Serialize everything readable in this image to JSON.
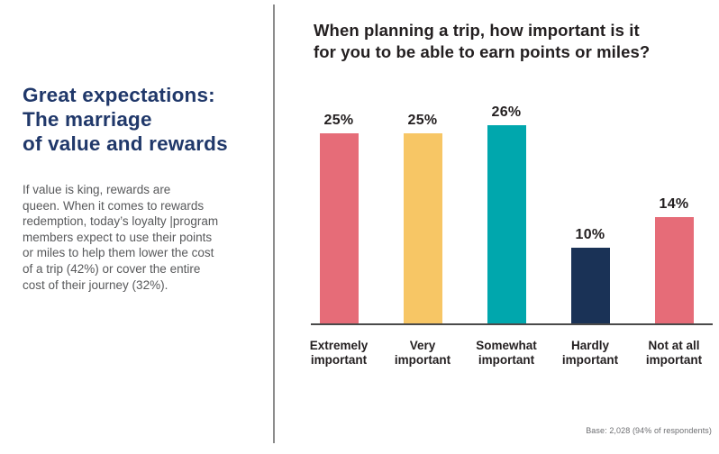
{
  "left_panel": {
    "headline_color": "#20386A",
    "headline_lines": [
      "Great expectations:",
      "The marriage",
      "of value and rewards"
    ],
    "body_lines": [
      "If value is king, rewards are",
      "queen. When it comes to rewards",
      "redemption, today’s loyalty |program",
      "members expect to use their points",
      "or miles to help them lower the cost",
      "of a trip (42%) or cover the entire",
      "cost of their journey (32%)."
    ]
  },
  "chart_data": {
    "type": "bar",
    "title": "When planning a trip, how important is it for you to be able to earn points or miles?",
    "title_lines": [
      "When planning a trip, how important is it",
      "for you to be able to earn points or miles?"
    ],
    "categories": [
      "Extremely important",
      "Very important",
      "Somewhat important",
      "Hardly important",
      "Not at all important"
    ],
    "category_label_lines": [
      [
        "Extremely",
        "important"
      ],
      [
        "Very",
        "important"
      ],
      [
        "Somewhat",
        "important"
      ],
      [
        "Hardly",
        "important"
      ],
      [
        "Not at all",
        "important"
      ]
    ],
    "values": [
      25,
      25,
      26,
      10,
      14
    ],
    "value_labels": [
      "25%",
      "25%",
      "26%",
      "10%",
      "14%"
    ],
    "bar_colors": [
      "#E66C78",
      "#F7C665",
      "#00A7AD",
      "#1A3256",
      "#E66C78"
    ],
    "xlabel": "",
    "ylabel": "",
    "ylim": [
      0,
      30
    ],
    "grid": false,
    "legend": false,
    "axis_line_color": "#4A4A4A",
    "footnote": "Base: 2,028 (94% of respondents)"
  }
}
